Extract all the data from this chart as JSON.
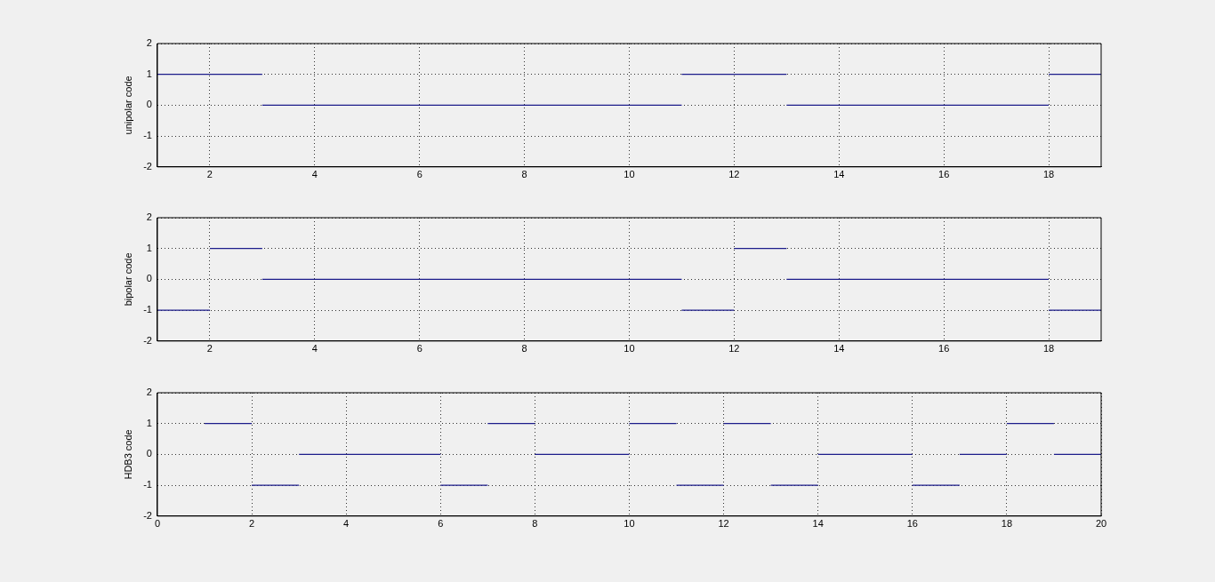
{
  "chart_data": [
    {
      "type": "line",
      "ylabel": "unipolar code",
      "xlim": [
        1,
        19
      ],
      "xticks": [
        2,
        4,
        6,
        8,
        10,
        12,
        14,
        16,
        18
      ],
      "ylim": [
        -2,
        2
      ],
      "yticks": [
        -2,
        -1,
        0,
        1,
        2
      ],
      "grid": true,
      "series": [
        {
          "color": "#1c1c8a",
          "x": [
            1,
            3
          ],
          "values": [
            1,
            1
          ]
        },
        {
          "color": "#1c1c8a",
          "x": [
            3,
            11
          ],
          "values": [
            0,
            0
          ]
        },
        {
          "color": "#1c1c8a",
          "x": [
            11,
            13
          ],
          "values": [
            1,
            1
          ]
        },
        {
          "color": "#1c1c8a",
          "x": [
            13,
            18
          ],
          "values": [
            0,
            0
          ]
        },
        {
          "color": "#1c1c8a",
          "x": [
            18,
            19
          ],
          "values": [
            1,
            1
          ]
        }
      ]
    },
    {
      "type": "line",
      "ylabel": "bipolar code",
      "xlim": [
        1,
        19
      ],
      "xticks": [
        2,
        4,
        6,
        8,
        10,
        12,
        14,
        16,
        18
      ],
      "ylim": [
        -2,
        2
      ],
      "yticks": [
        -2,
        -1,
        0,
        1,
        2
      ],
      "grid": true,
      "series": [
        {
          "color": "#1c1c8a",
          "x": [
            1,
            2
          ],
          "values": [
            -1,
            -1
          ]
        },
        {
          "color": "#1c1c8a",
          "x": [
            2,
            3
          ],
          "values": [
            1,
            1
          ]
        },
        {
          "color": "#1c1c8a",
          "x": [
            3,
            11
          ],
          "values": [
            0,
            0
          ]
        },
        {
          "color": "#1c1c8a",
          "x": [
            11,
            12
          ],
          "values": [
            -1,
            -1
          ]
        },
        {
          "color": "#1c1c8a",
          "x": [
            12,
            13
          ],
          "values": [
            1,
            1
          ]
        },
        {
          "color": "#1c1c8a",
          "x": [
            13,
            18
          ],
          "values": [
            0,
            0
          ]
        },
        {
          "color": "#1c1c8a",
          "x": [
            18,
            19
          ],
          "values": [
            -1,
            -1
          ]
        }
      ]
    },
    {
      "type": "line",
      "ylabel": "HDB3 code",
      "xlim": [
        0,
        20
      ],
      "xticks": [
        0,
        2,
        4,
        6,
        8,
        10,
        12,
        14,
        16,
        18,
        20
      ],
      "ylim": [
        -2,
        2
      ],
      "yticks": [
        -2,
        -1,
        0,
        1,
        2
      ],
      "grid": true,
      "series": [
        {
          "color": "#1c1c8a",
          "x": [
            1,
            2
          ],
          "values": [
            1,
            1
          ]
        },
        {
          "color": "#1c1c8a",
          "x": [
            2,
            3
          ],
          "values": [
            -1,
            -1
          ]
        },
        {
          "color": "#1c1c8a",
          "x": [
            3,
            6
          ],
          "values": [
            0,
            0
          ]
        },
        {
          "color": "#1c1c8a",
          "x": [
            6,
            7
          ],
          "values": [
            -1,
            -1
          ]
        },
        {
          "color": "#1c1c8a",
          "x": [
            7,
            8
          ],
          "values": [
            1,
            1
          ]
        },
        {
          "color": "#1c1c8a",
          "x": [
            8,
            10
          ],
          "values": [
            0,
            0
          ]
        },
        {
          "color": "#1c1c8a",
          "x": [
            10,
            11
          ],
          "values": [
            1,
            1
          ]
        },
        {
          "color": "#1c1c8a",
          "x": [
            11,
            12
          ],
          "values": [
            -1,
            -1
          ]
        },
        {
          "color": "#1c1c8a",
          "x": [
            12,
            13
          ],
          "values": [
            1,
            1
          ]
        },
        {
          "color": "#1c1c8a",
          "x": [
            13,
            14
          ],
          "values": [
            -1,
            -1
          ]
        },
        {
          "color": "#1c1c8a",
          "x": [
            14,
            16
          ],
          "values": [
            0,
            0
          ]
        },
        {
          "color": "#1c1c8a",
          "x": [
            16,
            17
          ],
          "values": [
            -1,
            -1
          ]
        },
        {
          "color": "#1c1c8a",
          "x": [
            17,
            18
          ],
          "values": [
            0,
            0
          ]
        },
        {
          "color": "#1c1c8a",
          "x": [
            18,
            19
          ],
          "values": [
            1,
            1
          ]
        },
        {
          "color": "#1c1c8a",
          "x": [
            19,
            20
          ],
          "values": [
            0,
            0
          ]
        }
      ]
    }
  ]
}
